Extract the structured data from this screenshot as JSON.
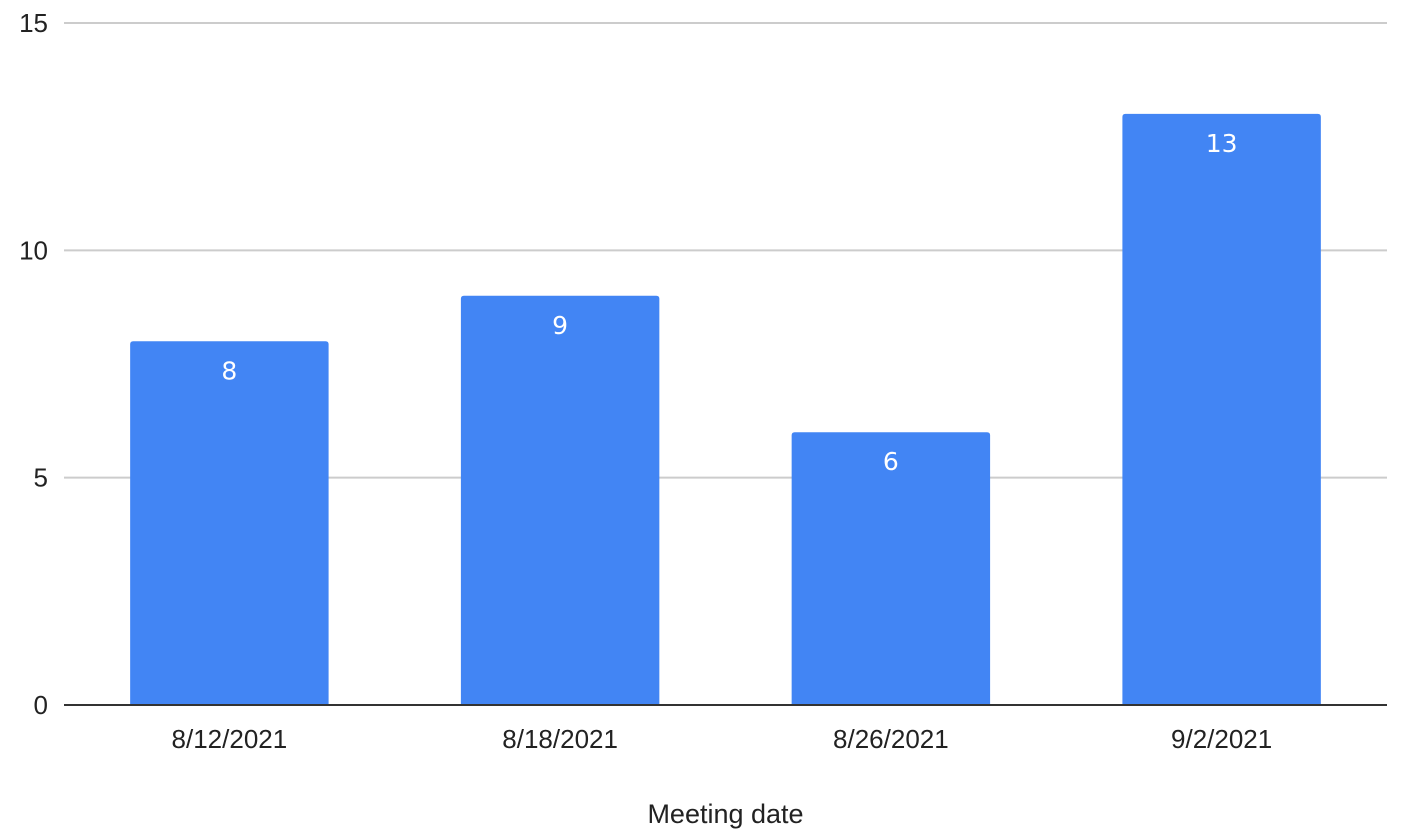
{
  "chart_data": {
    "type": "bar",
    "categories": [
      "8/12/2021",
      "8/18/2021",
      "8/26/2021",
      "9/2/2021"
    ],
    "values": [
      8,
      9,
      6,
      13
    ],
    "data_labels": [
      "8",
      "9",
      "6",
      "13"
    ],
    "title": "",
    "xlabel": "Meeting date",
    "ylabel": "",
    "ylim": [
      0,
      15
    ],
    "yticks": [
      0,
      5,
      10,
      15
    ],
    "ytick_labels": [
      "0",
      "5",
      "10",
      "15"
    ],
    "grid": true,
    "legend": "none",
    "colors": {
      "bar": "#4285f4",
      "gridline": "#cccccc",
      "baseline": "#333333",
      "text": "#222222",
      "data_label": "#ffffff"
    }
  }
}
